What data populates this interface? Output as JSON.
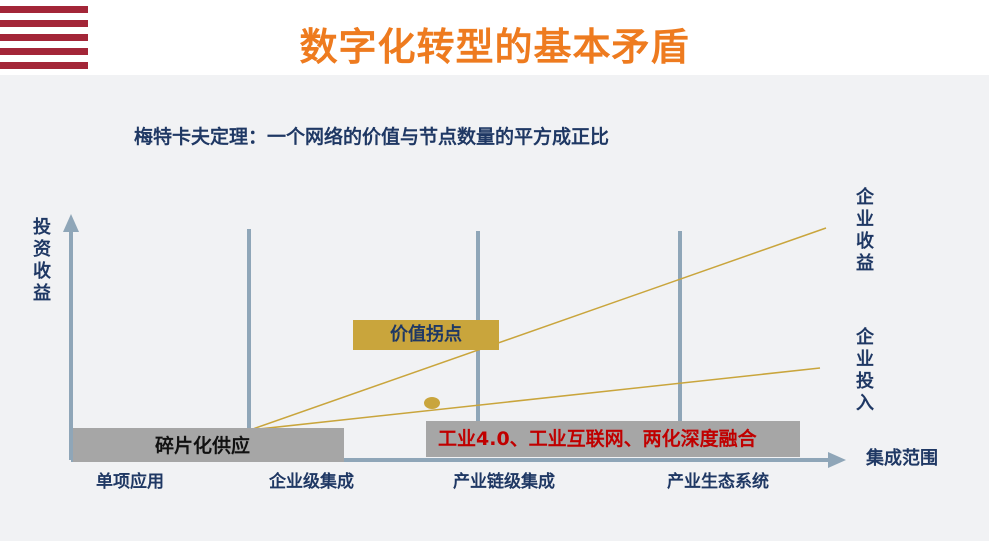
{
  "title": "数字化转型的基本矛盾",
  "subtitle": "梅特卡夫定理：一个网络的价值与节点数量的平方成正比",
  "axes": {
    "y_label": "投资收益",
    "x_label": "集成范围"
  },
  "stages": [
    "单项应用",
    "企业级集成",
    "产业链级集成",
    "产业生态系统"
  ],
  "curves": {
    "revenue_label": "企业收益",
    "investment_label": "企业投入"
  },
  "inflection_label": "价值拐点",
  "left_box": "碎片化供应",
  "right_box": "工业4.0、工业互联网、两化深度融合",
  "colors": {
    "title": "#ee7b1f",
    "text": "#1f3864",
    "stripe": "#a32638",
    "axis": "#8fa6b8",
    "curve": "#c9a53c",
    "highlight_text": "#c00000"
  }
}
